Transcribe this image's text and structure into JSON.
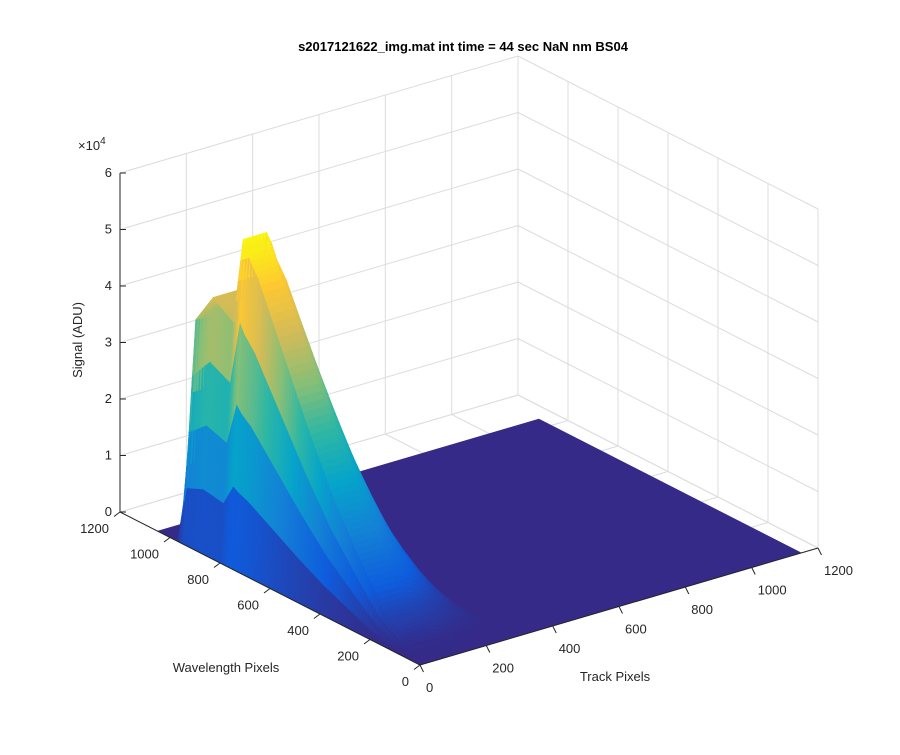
{
  "chart_data": {
    "type": "surface",
    "title": "s2017121622_img.mat int time = 44 sec  NaN nm BS04",
    "xlabel": "Track Pixels",
    "ylabel": "Wavelength Pixels",
    "zlabel": "Signal (ADU)",
    "z_exponent_label": "×10",
    "z_exponent_value": "4",
    "xlim": [
      0,
      1200
    ],
    "ylim": [
      0,
      1200
    ],
    "zlim": [
      0,
      6
    ],
    "x_ticks": [
      "0",
      "200",
      "400",
      "600",
      "800",
      "1000",
      "1200"
    ],
    "y_ticks": [
      "0",
      "200",
      "400",
      "600",
      "800",
      "1000",
      "1200"
    ],
    "z_ticks": [
      "0",
      "1",
      "2",
      "3",
      "4",
      "5",
      "6"
    ],
    "grid": true,
    "colormap": [
      "#352a87",
      "#0f5cdd",
      "#1481d6",
      "#06a4ca",
      "#2eb7a4",
      "#87bf77",
      "#d1bb59",
      "#fec832",
      "#f9fb0e"
    ],
    "surface": {
      "x_extent": [
        0,
        1150
      ],
      "y_extent": [
        0,
        1050
      ],
      "floor_value": 0,
      "peak": {
        "x": 110,
        "y": 750,
        "value": 5.75
      },
      "ridge_profile": {
        "y": [
          1050,
          980,
          950,
          880,
          800,
          760,
          740,
          700,
          600,
          500,
          400,
          300,
          200,
          100,
          0
        ],
        "value": [
          0,
          0,
          3.9,
          4.45,
          4.2,
          5.75,
          5.5,
          5.2,
          4.1,
          3.0,
          2.0,
          1.2,
          0.45,
          0.05,
          0
        ]
      }
    }
  }
}
